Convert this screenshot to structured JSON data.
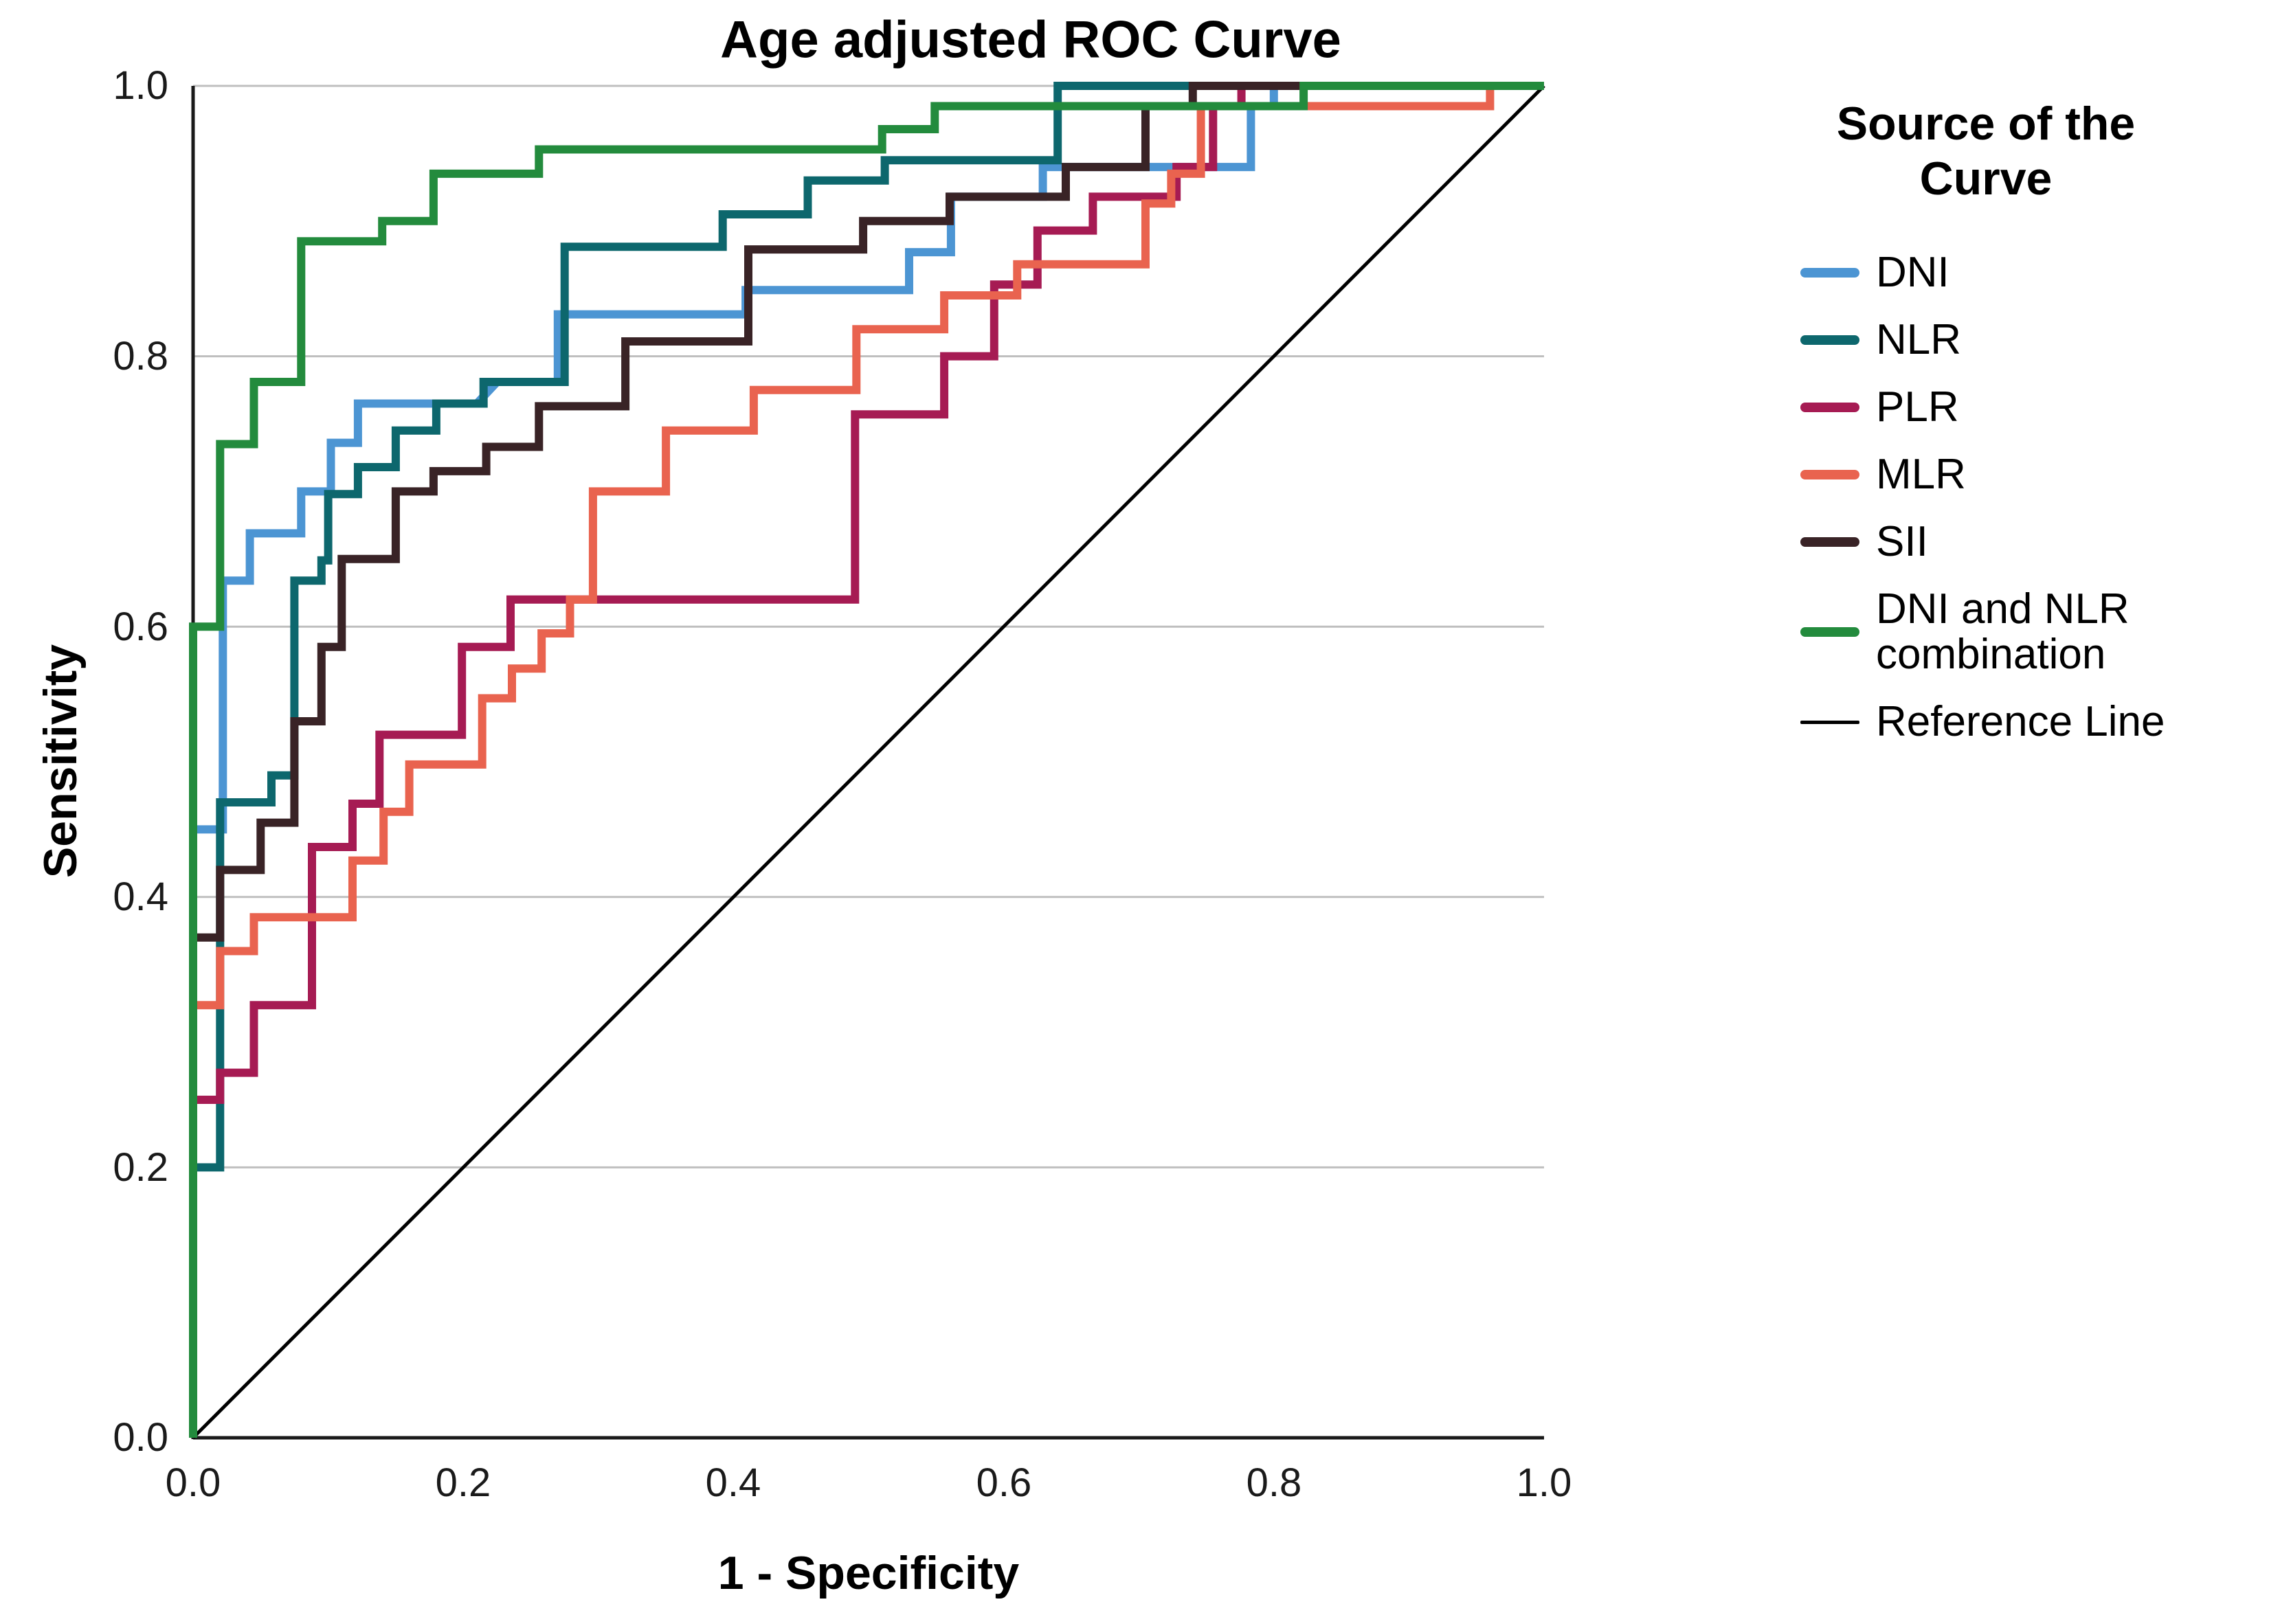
{
  "title": "Age adjusted ROC Curve",
  "axes": {
    "x_label": "1 - Specificity",
    "y_label": "Sensitivity",
    "x_tick_labels": [
      "0.0",
      "0.2",
      "0.4",
      "0.6",
      "0.8",
      "1.0"
    ],
    "y_tick_labels": [
      "1.0",
      "0.8",
      "0.6",
      "0.4",
      "0.2",
      "0.0"
    ]
  },
  "legend": {
    "title": "Source of the Curve",
    "entries": [
      {
        "label": "DNI",
        "color": "#4C95D3",
        "thin": false
      },
      {
        "label": "NLR",
        "color": "#0D676D",
        "thin": false
      },
      {
        "label": "PLR",
        "color": "#A61B53",
        "thin": false
      },
      {
        "label": "MLR",
        "color": "#E9634F",
        "thin": false
      },
      {
        "label": "SII",
        "color": "#392326",
        "thin": false
      },
      {
        "label": "DNI and NLR combination",
        "color": "#238B3D",
        "thin": false
      },
      {
        "label": "Reference Line",
        "color": "#000000",
        "thin": true
      }
    ]
  },
  "chart_data": {
    "type": "line",
    "subtype": "roc-step-curves",
    "title": "Age adjusted ROC Curve",
    "xlabel": "1 - Specificity",
    "ylabel": "Sensitivity",
    "xlim": [
      0,
      1
    ],
    "ylim": [
      0,
      1
    ],
    "x_ticks": [
      0,
      0.2,
      0.4,
      0.6,
      0.8,
      1.0
    ],
    "y_ticks": [
      0,
      0.2,
      0.4,
      0.6,
      0.8,
      1.0
    ],
    "grid": "horizontal-only",
    "grid_color": "#bfbfbf",
    "axis_color": "#1a1a1a",
    "legend_position": "right",
    "series": [
      {
        "name": "Reference Line",
        "color": "#000000",
        "stroke_width": 5,
        "points": [
          [
            0,
            0
          ],
          [
            1,
            1
          ]
        ]
      },
      {
        "name": "DNI",
        "color": "#4C95D3",
        "stroke_width": 12,
        "points": [
          [
            0,
            0
          ],
          [
            0,
            0.45
          ],
          [
            0.022,
            0.45
          ],
          [
            0.022,
            0.634
          ],
          [
            0.042,
            0.634
          ],
          [
            0.042,
            0.669
          ],
          [
            0.08,
            0.669
          ],
          [
            0.08,
            0.7
          ],
          [
            0.102,
            0.7
          ],
          [
            0.102,
            0.736
          ],
          [
            0.122,
            0.736
          ],
          [
            0.122,
            0.765
          ],
          [
            0.21,
            0.765
          ],
          [
            0.225,
            0.781
          ],
          [
            0.27,
            0.781
          ],
          [
            0.27,
            0.831
          ],
          [
            0.409,
            0.831
          ],
          [
            0.409,
            0.849
          ],
          [
            0.53,
            0.849
          ],
          [
            0.53,
            0.877
          ],
          [
            0.561,
            0.877
          ],
          [
            0.561,
            0.918
          ],
          [
            0.629,
            0.918
          ],
          [
            0.629,
            0.94
          ],
          [
            0.783,
            0.94
          ],
          [
            0.783,
            0.985
          ],
          [
            0.8,
            0.985
          ],
          [
            0.8,
            1
          ],
          [
            1,
            1
          ]
        ]
      },
      {
        "name": "NLR",
        "color": "#0D676D",
        "stroke_width": 12,
        "points": [
          [
            0,
            0
          ],
          [
            0,
            0.2
          ],
          [
            0.02,
            0.2
          ],
          [
            0.02,
            0.47
          ],
          [
            0.058,
            0.47
          ],
          [
            0.058,
            0.49
          ],
          [
            0.075,
            0.49
          ],
          [
            0.075,
            0.634
          ],
          [
            0.095,
            0.634
          ],
          [
            0.095,
            0.649
          ],
          [
            0.1,
            0.649
          ],
          [
            0.1,
            0.698
          ],
          [
            0.122,
            0.698
          ],
          [
            0.122,
            0.718
          ],
          [
            0.15,
            0.718
          ],
          [
            0.15,
            0.745
          ],
          [
            0.18,
            0.745
          ],
          [
            0.18,
            0.765
          ],
          [
            0.215,
            0.765
          ],
          [
            0.215,
            0.781
          ],
          [
            0.275,
            0.781
          ],
          [
            0.275,
            0.881
          ],
          [
            0.392,
            0.881
          ],
          [
            0.392,
            0.905
          ],
          [
            0.455,
            0.905
          ],
          [
            0.455,
            0.93
          ],
          [
            0.512,
            0.93
          ],
          [
            0.512,
            0.945
          ],
          [
            0.64,
            0.945
          ],
          [
            0.64,
            1
          ],
          [
            1,
            1
          ]
        ]
      },
      {
        "name": "PLR",
        "color": "#A61B53",
        "stroke_width": 12,
        "points": [
          [
            0,
            0
          ],
          [
            0,
            0.25
          ],
          [
            0.02,
            0.25
          ],
          [
            0.02,
            0.27
          ],
          [
            0.045,
            0.27
          ],
          [
            0.045,
            0.32
          ],
          [
            0.088,
            0.32
          ],
          [
            0.088,
            0.437
          ],
          [
            0.118,
            0.437
          ],
          [
            0.118,
            0.469
          ],
          [
            0.138,
            0.469
          ],
          [
            0.138,
            0.52
          ],
          [
            0.199,
            0.52
          ],
          [
            0.199,
            0.585
          ],
          [
            0.235,
            0.585
          ],
          [
            0.235,
            0.62
          ],
          [
            0.49,
            0.62
          ],
          [
            0.49,
            0.757
          ],
          [
            0.556,
            0.757
          ],
          [
            0.556,
            0.8
          ],
          [
            0.593,
            0.8
          ],
          [
            0.593,
            0.853
          ],
          [
            0.625,
            0.853
          ],
          [
            0.625,
            0.893
          ],
          [
            0.666,
            0.893
          ],
          [
            0.666,
            0.918
          ],
          [
            0.728,
            0.918
          ],
          [
            0.728,
            0.94
          ],
          [
            0.755,
            0.94
          ],
          [
            0.755,
            0.985
          ],
          [
            0.776,
            0.985
          ],
          [
            0.776,
            1
          ],
          [
            1,
            1
          ]
        ]
      },
      {
        "name": "MLR",
        "color": "#E9634F",
        "stroke_width": 12,
        "points": [
          [
            0,
            0
          ],
          [
            0,
            0.32
          ],
          [
            0.02,
            0.32
          ],
          [
            0.02,
            0.36
          ],
          [
            0.045,
            0.36
          ],
          [
            0.045,
            0.385
          ],
          [
            0.118,
            0.385
          ],
          [
            0.118,
            0.427
          ],
          [
            0.141,
            0.427
          ],
          [
            0.141,
            0.463
          ],
          [
            0.16,
            0.463
          ],
          [
            0.16,
            0.498
          ],
          [
            0.214,
            0.498
          ],
          [
            0.214,
            0.547
          ],
          [
            0.236,
            0.547
          ],
          [
            0.236,
            0.569
          ],
          [
            0.258,
            0.569
          ],
          [
            0.258,
            0.595
          ],
          [
            0.279,
            0.595
          ],
          [
            0.279,
            0.62
          ],
          [
            0.296,
            0.62
          ],
          [
            0.296,
            0.7
          ],
          [
            0.35,
            0.7
          ],
          [
            0.35,
            0.745
          ],
          [
            0.415,
            0.745
          ],
          [
            0.415,
            0.775
          ],
          [
            0.491,
            0.775
          ],
          [
            0.491,
            0.82
          ],
          [
            0.556,
            0.82
          ],
          [
            0.556,
            0.845
          ],
          [
            0.61,
            0.845
          ],
          [
            0.61,
            0.868
          ],
          [
            0.705,
            0.868
          ],
          [
            0.705,
            0.913
          ],
          [
            0.724,
            0.913
          ],
          [
            0.724,
            0.935
          ],
          [
            0.746,
            0.935
          ],
          [
            0.746,
            0.985
          ],
          [
            0.96,
            0.985
          ],
          [
            0.96,
            1
          ],
          [
            1,
            1
          ]
        ]
      },
      {
        "name": "SII",
        "color": "#392326",
        "stroke_width": 12,
        "points": [
          [
            0,
            0
          ],
          [
            0,
            0.37
          ],
          [
            0.02,
            0.37
          ],
          [
            0.02,
            0.42
          ],
          [
            0.05,
            0.42
          ],
          [
            0.05,
            0.455
          ],
          [
            0.075,
            0.455
          ],
          [
            0.075,
            0.53
          ],
          [
            0.095,
            0.53
          ],
          [
            0.095,
            0.585
          ],
          [
            0.11,
            0.585
          ],
          [
            0.11,
            0.65
          ],
          [
            0.15,
            0.65
          ],
          [
            0.15,
            0.7
          ],
          [
            0.178,
            0.7
          ],
          [
            0.178,
            0.715
          ],
          [
            0.217,
            0.715
          ],
          [
            0.217,
            0.733
          ],
          [
            0.256,
            0.733
          ],
          [
            0.256,
            0.763
          ],
          [
            0.32,
            0.763
          ],
          [
            0.32,
            0.811
          ],
          [
            0.411,
            0.811
          ],
          [
            0.411,
            0.879
          ],
          [
            0.496,
            0.879
          ],
          [
            0.496,
            0.9
          ],
          [
            0.56,
            0.9
          ],
          [
            0.56,
            0.918
          ],
          [
            0.646,
            0.918
          ],
          [
            0.646,
            0.94
          ],
          [
            0.705,
            0.94
          ],
          [
            0.705,
            0.985
          ],
          [
            0.74,
            0.985
          ],
          [
            0.74,
            1
          ],
          [
            1,
            1
          ]
        ]
      },
      {
        "name": "DNI and NLR combination",
        "color": "#238B3D",
        "stroke_width": 12,
        "points": [
          [
            0,
            0
          ],
          [
            0,
            0.6
          ],
          [
            0.02,
            0.6
          ],
          [
            0.02,
            0.735
          ],
          [
            0.045,
            0.735
          ],
          [
            0.045,
            0.781
          ],
          [
            0.08,
            0.781
          ],
          [
            0.08,
            0.885
          ],
          [
            0.14,
            0.885
          ],
          [
            0.14,
            0.9
          ],
          [
            0.178,
            0.9
          ],
          [
            0.178,
            0.935
          ],
          [
            0.256,
            0.935
          ],
          [
            0.256,
            0.953
          ],
          [
            0.51,
            0.953
          ],
          [
            0.51,
            0.968
          ],
          [
            0.549,
            0.968
          ],
          [
            0.549,
            0.985
          ],
          [
            0.822,
            0.985
          ],
          [
            0.822,
            1
          ],
          [
            1,
            1
          ]
        ]
      }
    ]
  }
}
